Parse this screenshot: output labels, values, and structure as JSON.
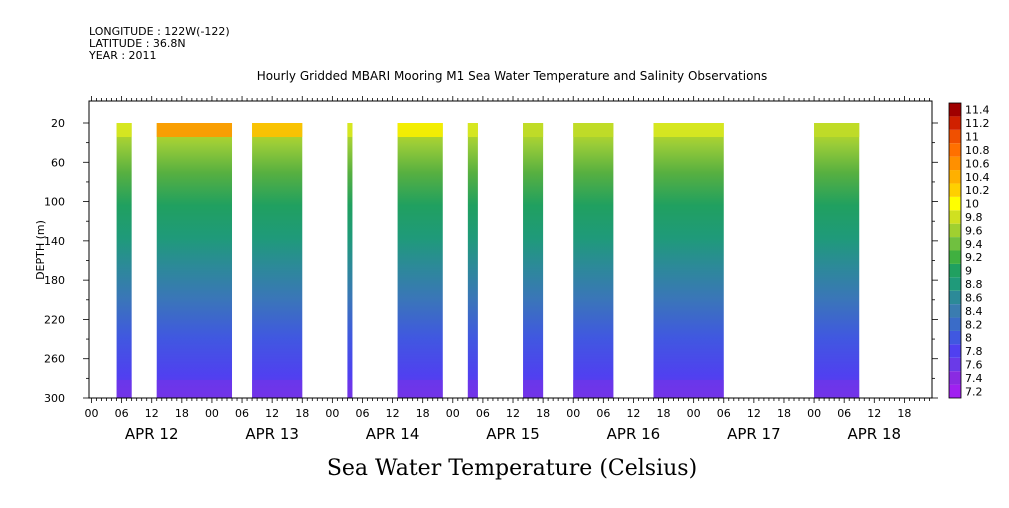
{
  "meta": {
    "longitude": "LONGITUDE : 122W(-122)",
    "latitude": "LATITUDE : 36.8N",
    "year": "YEAR : 2011"
  },
  "chart_data": {
    "type": "heatmap",
    "title": "Hourly Gridded MBARI Mooring M1 Sea Water Temperature and Salinity Observations",
    "bottom_title": "Sea Water Temperature (Celsius)",
    "ylabel": "DEPTH (m)",
    "y_ticks": [
      "20",
      "60",
      "100",
      "140",
      "180",
      "220",
      "260",
      "300"
    ],
    "y_values": [
      20,
      60,
      100,
      140,
      180,
      220,
      260,
      300
    ],
    "ylim": [
      300,
      20
    ],
    "x_hour_ticks": [
      "00",
      "06",
      "12",
      "18",
      "00",
      "06",
      "12",
      "18",
      "00",
      "06",
      "12",
      "18",
      "00",
      "06",
      "12",
      "18",
      "00",
      "06",
      "12",
      "18",
      "00",
      "06",
      "12",
      "18",
      "00",
      "06",
      "12",
      "18",
      "00",
      "06",
      "12",
      "18",
      "00",
      "06",
      "12",
      "18",
      "00",
      "06",
      "12",
      "18",
      "00",
      "06",
      "12",
      "18",
      "00",
      "06",
      "12",
      "18",
      "00",
      "06",
      "12",
      "18",
      "00",
      "06",
      "12",
      "18",
      "00",
      "06",
      "12",
      "18",
      "00",
      "06",
      "12",
      "18",
      "00",
      "06",
      "12",
      "18",
      "00",
      "06",
      "12",
      "18",
      "00",
      "06",
      "12",
      "18",
      "00",
      "06",
      "12",
      "18"
    ],
    "x_hour_ticks_shown": [
      "00",
      "06",
      "12",
      "18",
      "00",
      "06",
      "12",
      "18",
      "00",
      "06",
      "12",
      "18",
      "00",
      "06",
      "12",
      "18",
      "00",
      "06",
      "12",
      "18",
      "00",
      "06",
      "12",
      "18",
      "00",
      "06",
      "12",
      "18",
      "00",
      "06",
      "12",
      "18",
      "00",
      "06",
      "12",
      "18",
      "00",
      "06",
      "12",
      "18",
      "00",
      "06",
      "12",
      "18",
      "00",
      "06",
      "12",
      "18",
      "00",
      "06",
      "12",
      "18",
      "00",
      "06",
      "12",
      "18",
      "00",
      "06",
      "12",
      "18",
      "00",
      "06",
      "12",
      "18",
      "00",
      "06",
      "12",
      "18",
      "00",
      "06",
      "12",
      "18"
    ],
    "x_day_labels": [
      "APR 12",
      "APR 13",
      "APR 14",
      "APR 15",
      "APR 16",
      "APR 17",
      "APR 18"
    ],
    "colorbar": {
      "levels": [
        "7.2",
        "7.4",
        "7.6",
        "7.8",
        "8",
        "8.2",
        "8.4",
        "8.6",
        "8.8",
        "9",
        "9.2",
        "9.4",
        "9.6",
        "9.8",
        "10",
        "10.2",
        "10.4",
        "10.6",
        "10.8",
        "11",
        "11.2",
        "11.4"
      ],
      "colors": [
        "#a020f0",
        "#8a2be2",
        "#6a3ae8",
        "#5040f0",
        "#4058e0",
        "#3a6cc8",
        "#3a7cb0",
        "#2c8a98",
        "#1f9a7a",
        "#20a060",
        "#40b040",
        "#70c040",
        "#a0d030",
        "#d0e020",
        "#ffff00",
        "#ffd000",
        "#ffb000",
        "#ff9000",
        "#ff7000",
        "#f05000",
        "#d02000",
        "#a00000"
      ]
    },
    "segments": [
      {
        "start": "Apr 12 05:00",
        "end": "Apr 12 08:00",
        "surface_temp": 9.8
      },
      {
        "start": "Apr 12 13:00",
        "end": "Apr 13 04:00",
        "surface_temp": 10.4
      },
      {
        "start": "Apr 13 08:00",
        "end": "Apr 13 18:00",
        "surface_temp": 10.2
      },
      {
        "start": "Apr 14 03:00",
        "end": "Apr 14 04:00",
        "surface_temp": 9.8
      },
      {
        "start": "Apr 14 13:00",
        "end": "Apr 14 22:00",
        "surface_temp": 10.0
      },
      {
        "start": "Apr 15 03:00",
        "end": "Apr 15 05:00",
        "surface_temp": 9.8
      },
      {
        "start": "Apr 15 14:00",
        "end": "Apr 15 18:00",
        "surface_temp": 9.6
      },
      {
        "start": "Apr 16 00:00",
        "end": "Apr 16 08:00",
        "surface_temp": 9.6
      },
      {
        "start": "Apr 16 16:00",
        "end": "Apr 17 06:00",
        "surface_temp": 9.8
      },
      {
        "start": "Apr 18 00:00",
        "end": "Apr 18 09:00",
        "surface_temp": 9.6
      }
    ]
  }
}
